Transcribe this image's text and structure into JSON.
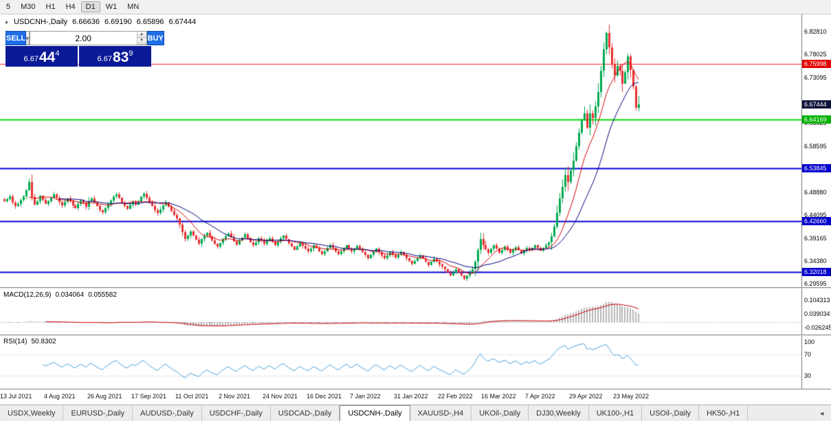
{
  "window": {
    "timeframes": [
      "5",
      "M30",
      "H1",
      "H4",
      "D1",
      "W1",
      "MN"
    ],
    "active_timeframe": "D1"
  },
  "header": {
    "symbol": "USDCNH-,Daily",
    "open": "6.66636",
    "high": "6.69190",
    "low": "6.65896",
    "close": "6.67444"
  },
  "trade_panel": {
    "sell_label": "SELL",
    "buy_label": "BUY",
    "volume": "2.00",
    "sell_price": {
      "big_figure": "6.67",
      "pips": "44",
      "pipette": "4"
    },
    "buy_price": {
      "big_figure": "6.67",
      "pips": "83",
      "pipette": "9"
    },
    "colors": {
      "button_bg": "#1e6fe8",
      "price_bg": "#0a1a96"
    }
  },
  "tabs": {
    "items": [
      "USDX,Weekly",
      "EURUSD-,Daily",
      "AUDUSD-,Daily",
      "USDCHF-,Daily",
      "USDCAD-,Daily",
      "USDCNH-,Daily",
      "XAUUSD-,H4",
      "UKOil-,Daily",
      "DJ30,Weekly",
      "UK100-,H1",
      "USOil-,Daily",
      "HK50-,H1"
    ],
    "active_index": 5
  },
  "icons": {
    "symbol_marker": "▲",
    "dropdown_arrow": "▾",
    "spinner_up": "▲",
    "spinner_down": "▼",
    "tab_scroll_left": "◄"
  },
  "chart_data": {
    "type": "candlestick",
    "title": "USDCNH-,Daily",
    "x_ticks": [
      {
        "label": "13 Jul 2021",
        "index": 0
      },
      {
        "label": "4 Aug 2021",
        "index": 16
      },
      {
        "label": "26 Aug 2021",
        "index": 32
      },
      {
        "label": "17 Sep 2021",
        "index": 48
      },
      {
        "label": "11 Oct 2021",
        "index": 64
      },
      {
        "label": "2 Nov 2021",
        "index": 80
      },
      {
        "label": "24 Nov 2021",
        "index": 96
      },
      {
        "label": "16 Dec 2021",
        "index": 112
      },
      {
        "label": "7 Jan 2022",
        "index": 128
      },
      {
        "label": "31 Jan 2022",
        "index": 144
      },
      {
        "label": "22 Feb 2022",
        "index": 160
      },
      {
        "label": "16 Mar 2022",
        "index": 176
      },
      {
        "label": "7 Apr 2022",
        "index": 192
      },
      {
        "label": "29 Apr 2022",
        "index": 208
      },
      {
        "label": "23 May 2022",
        "index": 224
      }
    ],
    "y_ticks": [
      "6.82810",
      "6.78025",
      "6.73095",
      "6.63525",
      "6.58595",
      "6.48880",
      "6.44095",
      "6.39165",
      "6.34380",
      "6.29595"
    ],
    "y_range": [
      6.288,
      6.864
    ],
    "price_badges": [
      {
        "label": "6.75998",
        "value": 6.75998,
        "color": "#e60000"
      },
      {
        "label": "6.67444",
        "value": 6.67444,
        "color": "#10103c"
      },
      {
        "label": "6.64169",
        "value": 6.64169,
        "color": "#00b300"
      },
      {
        "label": "6.53845",
        "value": 6.53845,
        "color": "#0000cc"
      },
      {
        "label": "6.42660",
        "value": 6.4266,
        "color": "#0000cc"
      },
      {
        "label": "6.32018",
        "value": 6.32018,
        "color": "#0000cc"
      }
    ],
    "hlines": [
      {
        "value": 6.75998,
        "color": "#ff2020",
        "width": 1
      },
      {
        "value": 6.64169,
        "color": "#00dc00",
        "width": 2
      },
      {
        "value": 6.53845,
        "color": "#0000d8",
        "width": 2
      },
      {
        "value": 6.4266,
        "color": "#0000d8",
        "width": 2
      },
      {
        "value": 6.32018,
        "color": "#0000d8",
        "width": 2
      }
    ],
    "closes": [
      6.47,
      6.474,
      6.479,
      6.467,
      6.459,
      6.464,
      6.472,
      6.48,
      6.493,
      6.51,
      6.478,
      6.462,
      6.47,
      6.481,
      6.472,
      6.464,
      6.47,
      6.477,
      6.484,
      6.476,
      6.468,
      6.46,
      6.468,
      6.475,
      6.469,
      6.461,
      6.455,
      6.463,
      6.471,
      6.466,
      6.458,
      6.47,
      6.475,
      6.467,
      6.459,
      6.451,
      6.446,
      6.455,
      6.463,
      6.471,
      6.479,
      6.484,
      6.476,
      6.467,
      6.459,
      6.454,
      6.462,
      6.468,
      6.462,
      6.47,
      6.479,
      6.485,
      6.476,
      6.467,
      6.459,
      6.451,
      6.444,
      6.452,
      6.461,
      6.467,
      6.458,
      6.449,
      6.441,
      6.433,
      6.42,
      6.404,
      6.39,
      6.397,
      6.405,
      6.397,
      6.388,
      6.38,
      6.389,
      6.397,
      6.403,
      6.395,
      6.386,
      6.379,
      6.373,
      6.381,
      6.389,
      6.396,
      6.401,
      6.393,
      6.385,
      6.378,
      6.386,
      6.393,
      6.399,
      6.391,
      6.383,
      6.376,
      6.383,
      6.391,
      6.386,
      6.379,
      6.386,
      6.391,
      6.384,
      6.377,
      6.384,
      6.391,
      6.397,
      6.389,
      6.381,
      6.374,
      6.367,
      6.374,
      6.381,
      6.375,
      6.369,
      6.363,
      6.369,
      6.376,
      6.371,
      6.364,
      6.358,
      6.364,
      6.371,
      6.377,
      6.371,
      6.364,
      6.358,
      6.364,
      6.37,
      6.376,
      6.369,
      6.363,
      6.369,
      6.375,
      6.369,
      6.362,
      6.356,
      6.349,
      6.356,
      6.363,
      6.369,
      6.362,
      6.355,
      6.349,
      6.355,
      6.362,
      6.356,
      6.35,
      6.356,
      6.362,
      6.356,
      6.349,
      6.343,
      6.337,
      6.343,
      6.349,
      6.355,
      6.348,
      6.341,
      6.335,
      6.341,
      6.348,
      6.342,
      6.336,
      6.331,
      6.325,
      6.319,
      6.313,
      6.319,
      6.325,
      6.319,
      6.312,
      6.306,
      6.312,
      6.319,
      6.326,
      6.341,
      6.366,
      6.389,
      6.376,
      6.368,
      6.361,
      6.369,
      6.376,
      6.369,
      6.361,
      6.367,
      6.373,
      6.367,
      6.36,
      6.366,
      6.372,
      6.366,
      6.359,
      6.365,
      6.371,
      6.366,
      6.371,
      6.376,
      6.37,
      6.365,
      6.371,
      6.377,
      6.383,
      6.395,
      6.415,
      6.445,
      6.475,
      6.5,
      6.525,
      6.51,
      6.535,
      6.555,
      6.585,
      6.615,
      6.64,
      6.655,
      6.625,
      6.655,
      6.645,
      6.67,
      6.7,
      6.745,
      6.79,
      6.825,
      6.795,
      6.76,
      6.735,
      6.755,
      6.745,
      6.718,
      6.742,
      6.775,
      6.746,
      6.712,
      6.666,
      6.674
    ],
    "last_candle": {
      "open": 6.66636,
      "high": 6.6919,
      "low": 6.65896,
      "close": 6.67444
    },
    "colors": {
      "bull": "#00a94f",
      "bear": "#e83030",
      "ma_fast": "#d60000",
      "ma_slow": "#00007e",
      "macd_hist": "#b6b6b6",
      "macd_signal": "#cc0000",
      "rsi": "#4aa0d8"
    },
    "macd": {
      "label": "MACD(12,26,9)",
      "value_main": "0.034064",
      "value_signal": "0.055582",
      "axis_ticks": [
        "0.104313",
        "0.039034",
        "-0.026245"
      ],
      "range": [
        -0.058,
        0.158
      ]
    },
    "rsi": {
      "label": "RSI(14)",
      "value": "50.8302",
      "axis_ticks": [
        "100",
        "70",
        "30"
      ],
      "levels": [
        70,
        30
      ],
      "range": [
        5,
        105
      ]
    }
  }
}
